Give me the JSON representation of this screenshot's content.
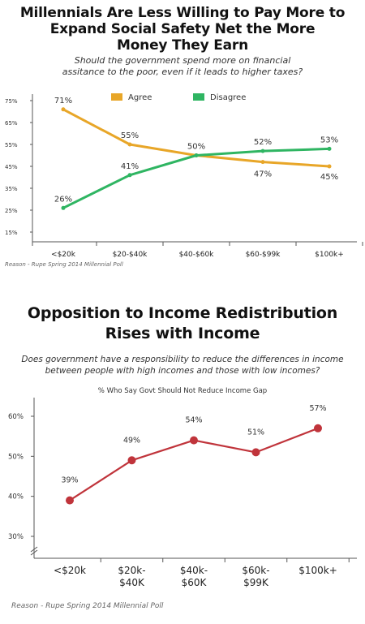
{
  "chart_data": [
    {
      "type": "line",
      "title_lines": [
        "Millennials Are Less Willing to Pay More to",
        "Expand Social Safety Net the More",
        "Money They Earn"
      ],
      "subtitle_lines": [
        "Should the government spend more on financial",
        "assitance to the poor, even if it leads to higher taxes?"
      ],
      "categories": [
        "<$20k",
        "$20-$40k",
        "$40-$60k",
        "$60-$99k",
        "$100k+"
      ],
      "yticks": [
        "75%",
        "65%",
        "55%",
        "45%",
        "35%",
        "25%",
        "15%"
      ],
      "ylim": [
        15,
        75
      ],
      "series": [
        {
          "name": "Agree",
          "values": [
            71,
            55,
            50,
            47,
            45
          ],
          "labels": [
            "71%",
            "55%",
            "50%",
            "47%",
            "45%"
          ],
          "color": "#e8a628"
        },
        {
          "name": "Disagree",
          "values": [
            26,
            41,
            50,
            52,
            53
          ],
          "labels": [
            "26%",
            "41%",
            "50%",
            "52%",
            "53%"
          ],
          "color": "#2fb562"
        }
      ],
      "legend": "top",
      "source": "Reason - Rupe Spring 2014 Millennial Poll"
    },
    {
      "type": "line",
      "title_lines": [
        "Opposition to Income Redistribution",
        "Rises with Income"
      ],
      "subtitle_lines": [
        "Does government have a responsibility to reduce the differences in income",
        "between people with high incomes and those with low incomes?"
      ],
      "chart_label": "% Who Say Govt Should Not Reduce Income Gap",
      "categories": [
        [
          "<$20k"
        ],
        [
          "$20k-",
          "$40K"
        ],
        [
          "$40k-",
          "$60K"
        ],
        [
          "$60k-",
          "$99K"
        ],
        [
          "$100k+"
        ]
      ],
      "yticks": [
        "60%",
        "50%",
        "40%",
        "30%"
      ],
      "ylim": [
        30,
        60
      ],
      "series": [
        {
          "values": [
            39,
            49,
            54,
            51,
            57
          ],
          "labels": [
            "39%",
            "49%",
            "54%",
            "51%",
            "57%"
          ],
          "color": "#c0343b"
        }
      ],
      "source": "Reason - Rupe Spring 2014 Millennial Poll"
    }
  ]
}
